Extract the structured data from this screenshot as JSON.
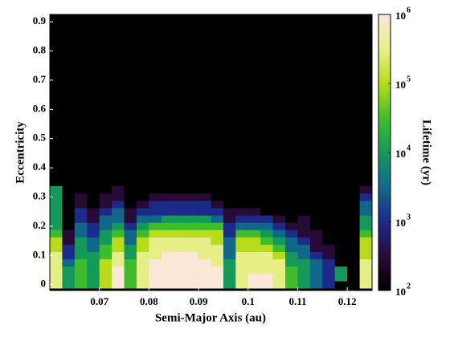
{
  "chart_data": {
    "type": "heatmap",
    "x_label": "Semi-Major Axis (au)",
    "y_label": "Eccentricity",
    "colorbar_label": "Lifetime (yr)",
    "xlim": [
      0.06,
      0.125
    ],
    "ylim": [
      -0.02,
      0.925
    ],
    "xticks": [
      0.07,
      0.08,
      0.09,
      0.1,
      0.11,
      0.12
    ],
    "yticks": [
      0,
      0.1,
      0.2,
      0.3,
      0.4,
      0.5,
      0.6,
      0.7,
      0.8,
      0.9
    ],
    "zlim": [
      100,
      1000000
    ],
    "zscale": "log",
    "zticks": [
      {
        "value": 100,
        "label": "10",
        "exponent": "2"
      },
      {
        "value": 1000,
        "label": "10",
        "exponent": "3"
      },
      {
        "value": 10000,
        "label": "10",
        "exponent": "4"
      },
      {
        "value": 100000,
        "label": "10",
        "exponent": "5"
      },
      {
        "value": 1000000,
        "label": "10",
        "exponent": "6"
      }
    ],
    "colormap": [
      "#000000",
      "#2a0a3a",
      "#1c2a8a",
      "#106a8a",
      "#139a5a",
      "#3fbf2a",
      "#b8dc1a",
      "#e8f08a",
      "#fbe8d8"
    ],
    "background": "#000000",
    "x": [
      0.06125,
      0.06375,
      0.06625,
      0.06875,
      0.07125,
      0.07375,
      0.07625,
      0.07875,
      0.08125,
      0.08375,
      0.08625,
      0.08875,
      0.09125,
      0.09375,
      0.09625,
      0.09875,
      0.10125,
      0.10375,
      0.10625,
      0.10875,
      0.11125,
      0.11375,
      0.11625,
      0.11875,
      0.12125,
      0.12375
    ],
    "y": [
      0,
      0.025,
      0.05,
      0.075,
      0.1,
      0.125,
      0.15,
      0.175,
      0.2,
      0.225,
      0.25,
      0.275,
      0.3,
      0.325
    ],
    "z": [
      [
        300000,
        10000,
        30000,
        10000,
        100000,
        1000000,
        30000,
        300000,
        1000000,
        1000000,
        1000000,
        1000000,
        1000000,
        1000000,
        10000,
        300000,
        1000000,
        1000000,
        300000,
        30000,
        10000,
        3000,
        1000,
        100,
        100,
        300000
      ],
      [
        300000,
        10000,
        30000,
        10000,
        100000,
        1000000,
        30000,
        300000,
        1000000,
        1000000,
        1000000,
        1000000,
        1000000,
        1000000,
        10000,
        300000,
        1000000,
        1000000,
        300000,
        30000,
        10000,
        3000,
        1000,
        10000,
        100,
        300000
      ],
      [
        300000,
        10000,
        30000,
        10000,
        100000,
        1000000,
        30000,
        300000,
        1000000,
        1000000,
        1000000,
        1000000,
        1000000,
        1000000,
        10000,
        300000,
        300000,
        300000,
        300000,
        30000,
        10000,
        3000,
        1000,
        10000,
        100,
        300000
      ],
      [
        300000,
        3000,
        30000,
        10000,
        100000,
        300000,
        30000,
        300000,
        1000000,
        1000000,
        1000000,
        1000000,
        1000000,
        300000,
        10000,
        300000,
        300000,
        300000,
        300000,
        10000,
        10000,
        3000,
        1000,
        100,
        100,
        300000
      ],
      [
        300000,
        1000,
        10000,
        10000,
        30000,
        300000,
        10000,
        300000,
        300000,
        1000000,
        1000000,
        1000000,
        300000,
        300000,
        3000,
        300000,
        300000,
        300000,
        100000,
        10000,
        3000,
        1000,
        300,
        100,
        100,
        100000
      ],
      [
        100000,
        1000,
        10000,
        3000,
        30000,
        100000,
        10000,
        100000,
        300000,
        300000,
        300000,
        300000,
        300000,
        300000,
        3000,
        100000,
        100000,
        100000,
        30000,
        3000,
        3000,
        300,
        300,
        100,
        100,
        100000
      ],
      [
        100000,
        300,
        10000,
        3000,
        10000,
        100000,
        3000,
        100000,
        300000,
        300000,
        300000,
        300000,
        300000,
        100000,
        3000,
        100000,
        100000,
        30000,
        10000,
        3000,
        1000,
        300,
        100,
        100,
        100,
        100000
      ],
      [
        30000,
        300,
        3000,
        1000,
        10000,
        30000,
        3000,
        30000,
        100000,
        100000,
        100000,
        100000,
        100000,
        100000,
        1000,
        30000,
        30000,
        10000,
        3000,
        1000,
        300,
        300,
        100,
        100,
        100,
        30000
      ],
      [
        10000,
        100,
        3000,
        1000,
        3000,
        10000,
        1000,
        10000,
        30000,
        30000,
        30000,
        30000,
        30000,
        30000,
        1000,
        3000,
        3000,
        3000,
        1000,
        300,
        300,
        100,
        100,
        100,
        100,
        10000
      ],
      [
        10000,
        100,
        1000,
        300,
        3000,
        3000,
        300,
        3000,
        3000,
        10000,
        10000,
        10000,
        10000,
        3000,
        300,
        1000,
        1000,
        1000,
        300,
        100,
        300,
        100,
        100,
        100,
        100,
        10000
      ],
      [
        10000,
        100,
        1000,
        300,
        1000,
        3000,
        300,
        1000,
        1000,
        1000,
        1000,
        1000,
        1000,
        1000,
        300,
        300,
        300,
        100,
        100,
        100,
        100,
        100,
        100,
        100,
        100,
        3000
      ],
      [
        10000,
        100,
        300,
        100,
        300,
        1000,
        100,
        300,
        1000,
        1000,
        1000,
        1000,
        1000,
        300,
        100,
        100,
        100,
        100,
        100,
        100,
        100,
        100,
        100,
        100,
        100,
        3000
      ],
      [
        10000,
        100,
        300,
        100,
        300,
        300,
        100,
        100,
        300,
        300,
        300,
        300,
        300,
        100,
        100,
        100,
        100,
        100,
        100,
        100,
        100,
        100,
        100,
        100,
        100,
        1000
      ],
      [
        10000,
        100,
        100,
        100,
        100,
        300,
        100,
        100,
        100,
        100,
        100,
        100,
        100,
        100,
        100,
        100,
        100,
        100,
        100,
        100,
        100,
        100,
        100,
        100,
        100,
        300
      ]
    ]
  }
}
